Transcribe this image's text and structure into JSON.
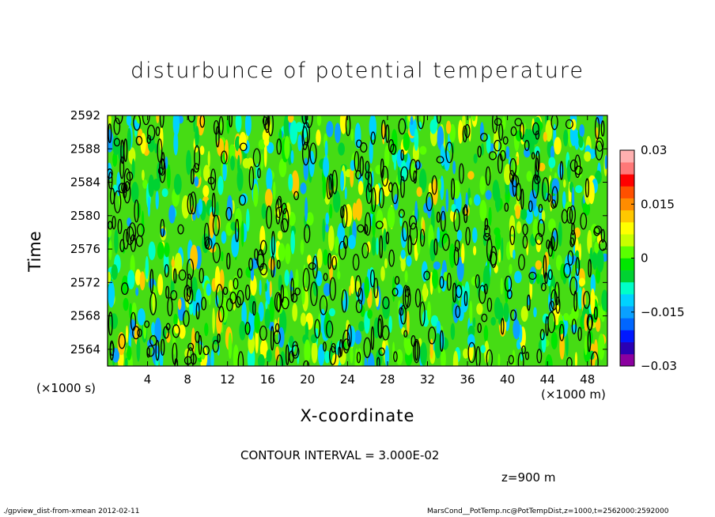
{
  "chart_data": {
    "type": "heatmap",
    "title": "disturbunce of potential temperature",
    "xlabel": "X-coordinate",
    "ylabel": "Time",
    "x_unit": "(×1000 m)",
    "y_unit": "(×1000 s)",
    "xlim": [
      0,
      50
    ],
    "ylim": [
      2562,
      2592
    ],
    "x_ticks": [
      4,
      8,
      12,
      16,
      20,
      24,
      28,
      32,
      36,
      40,
      44,
      48
    ],
    "y_ticks": [
      2564,
      2568,
      2572,
      2576,
      2580,
      2584,
      2588,
      2592
    ],
    "colorbar": {
      "min": -0.03,
      "max": 0.03,
      "tick_values": [
        0.03,
        0.015,
        0,
        -0.015,
        -0.03
      ],
      "tick_labels": [
        "0.03",
        "0.015",
        "0",
        "−0.015",
        "−0.03"
      ],
      "colors": [
        "#8b00a0",
        "#2a00b4",
        "#0018ff",
        "#0066ff",
        "#0aa0ff",
        "#00d2ff",
        "#00ffc8",
        "#00d232",
        "#00e600",
        "#5aff00",
        "#c8ff00",
        "#ffff00",
        "#ffc800",
        "#ff8c00",
        "#ff5000",
        "#ff0000",
        "#ff7878",
        "#ffb0b0"
      ]
    },
    "contour_interval": "CONTOUR INTERVAL = 3.000E-02",
    "level": "z=900 m"
  },
  "footer": {
    "left": "./gpview_dist-from-xmean  2012-02-11",
    "right": "MarsCond__PotTemp.nc@PotTempDist,z=1000,t=2562000:2592000"
  }
}
